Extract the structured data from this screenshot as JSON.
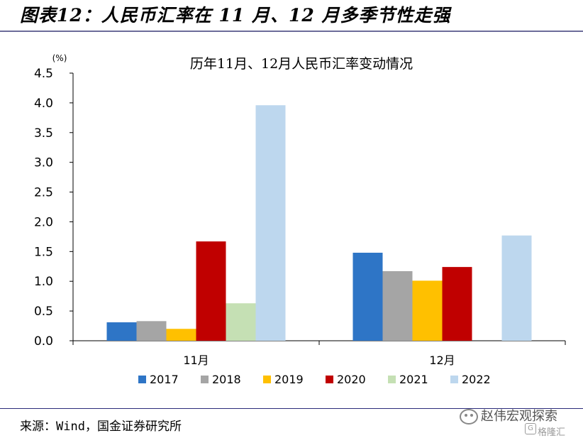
{
  "header": {
    "title": "图表12：人民币汇率在 11 月、12 月多季节性走强"
  },
  "footer": {
    "source": "来源：Wind，国金证券研究所"
  },
  "watermark": {
    "main": "赵伟宏观探索",
    "sub": "格隆汇",
    "icon": "wechat-icon",
    "logo_letter": "G"
  },
  "chart_data": {
    "type": "bar",
    "title": "历年11月、12月人民币汇率变动情况",
    "unit_label": "(%)",
    "xlabel": "",
    "ylabel": "",
    "categories": [
      "11月",
      "12月"
    ],
    "ylim": [
      0,
      4.5
    ],
    "yticks": [
      "0.0",
      "0.5",
      "1.0",
      "1.5",
      "2.0",
      "2.5",
      "3.0",
      "3.5",
      "4.0",
      "4.5"
    ],
    "grid": false,
    "legend_position": "bottom",
    "series": [
      {
        "name": "2017",
        "color": "#2e75c6",
        "values": [
          0.31,
          1.48
        ]
      },
      {
        "name": "2018",
        "color": "#a5a5a5",
        "values": [
          0.33,
          1.17
        ]
      },
      {
        "name": "2019",
        "color": "#ffc000",
        "values": [
          0.2,
          1.01
        ]
      },
      {
        "name": "2020",
        "color": "#c00000",
        "values": [
          1.67,
          1.24
        ]
      },
      {
        "name": "2021",
        "color": "#c5e0b4",
        "values": [
          0.63,
          null
        ]
      },
      {
        "name": "2022",
        "color": "#bdd7ee",
        "values": [
          3.96,
          1.77
        ]
      }
    ]
  }
}
